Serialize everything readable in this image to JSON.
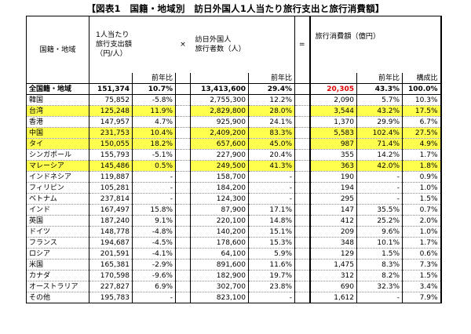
{
  "title": "【図表1　国籍・地域別　訪日外国人1人当たり旅行支出と旅行消費額】",
  "headers": {
    "country": "国籍・地域",
    "per_capita_line1": "1人当たり",
    "per_capita_line2": "旅行支出額",
    "per_capita_line3": "（円/人）",
    "times": "×",
    "visitors_line1": "訪日外国人",
    "visitors_line2": "旅行者数（人）",
    "equals": "=",
    "consumption": "旅行消費額（億円）",
    "yoy": "前年比",
    "share": "構成比"
  },
  "rows": [
    {
      "name": "全国籍・地域",
      "spend": "151,374",
      "spend_yoy": "10.7%",
      "visitors": "13,413,600",
      "visitors_yoy": "29.4%",
      "consumption": "20,305",
      "cons_yoy": "43.3%",
      "share": "100.0%",
      "highlight": false,
      "total": true
    },
    {
      "name": "韓国",
      "spend": "75,852",
      "spend_yoy": "-5.8%",
      "visitors": "2,755,300",
      "visitors_yoy": "12.2%",
      "consumption": "2,090",
      "cons_yoy": "5.7%",
      "share": "10.3%",
      "highlight": false,
      "total": false
    },
    {
      "name": "台湾",
      "spend": "125,248",
      "spend_yoy": "11.9%",
      "visitors": "2,829,800",
      "visitors_yoy": "28.0%",
      "consumption": "3,544",
      "cons_yoy": "43.2%",
      "share": "17.5%",
      "highlight": true,
      "total": false
    },
    {
      "name": "香港",
      "spend": "147,957",
      "spend_yoy": "4.7%",
      "visitors": "925,900",
      "visitors_yoy": "24.1%",
      "consumption": "1,370",
      "cons_yoy": "29.9%",
      "share": "6.7%",
      "highlight": false,
      "total": false
    },
    {
      "name": "中国",
      "spend": "231,753",
      "spend_yoy": "10.4%",
      "visitors": "2,409,200",
      "visitors_yoy": "83.3%",
      "consumption": "5,583",
      "cons_yoy": "102.4%",
      "share": "27.5%",
      "highlight": true,
      "total": false
    },
    {
      "name": "タイ",
      "spend": "150,055",
      "spend_yoy": "18.2%",
      "visitors": "657,600",
      "visitors_yoy": "45.0%",
      "consumption": "987",
      "cons_yoy": "71.4%",
      "share": "4.9%",
      "highlight": true,
      "total": false
    },
    {
      "name": "シンガポール",
      "spend": "155,793",
      "spend_yoy": "-5.1%",
      "visitors": "227,900",
      "visitors_yoy": "20.4%",
      "consumption": "355",
      "cons_yoy": "14.2%",
      "share": "1.7%",
      "highlight": false,
      "total": false
    },
    {
      "name": "マレーシア",
      "spend": "145,486",
      "spend_yoy": "0.5%",
      "visitors": "249,500",
      "visitors_yoy": "41.3%",
      "consumption": "363",
      "cons_yoy": "42.0%",
      "share": "1.8%",
      "highlight": true,
      "total": false
    },
    {
      "name": "インドネシア",
      "spend": "119,887",
      "spend_yoy": "-",
      "visitors": "158,700",
      "visitors_yoy": "-",
      "consumption": "190",
      "cons_yoy": "-",
      "share": "0.9%",
      "highlight": false,
      "total": false
    },
    {
      "name": "フィリピン",
      "spend": "105,281",
      "spend_yoy": "-",
      "visitors": "184,200",
      "visitors_yoy": "-",
      "consumption": "194",
      "cons_yoy": "-",
      "share": "1.0%",
      "highlight": false,
      "total": false
    },
    {
      "name": "ベトナム",
      "spend": "237,814",
      "spend_yoy": "-",
      "visitors": "124,300",
      "visitors_yoy": "-",
      "consumption": "295",
      "cons_yoy": "-",
      "share": "1.5%",
      "highlight": false,
      "total": false
    },
    {
      "name": "インド",
      "spend": "167,497",
      "spend_yoy": "15.8%",
      "visitors": "87,900",
      "visitors_yoy": "17.1%",
      "consumption": "147",
      "cons_yoy": "35.5%",
      "share": "0.7%",
      "highlight": false,
      "total": false
    },
    {
      "name": "英国",
      "spend": "187,240",
      "spend_yoy": "9.1%",
      "visitors": "220,100",
      "visitors_yoy": "14.8%",
      "consumption": "412",
      "cons_yoy": "25.2%",
      "share": "2.0%",
      "highlight": false,
      "total": false
    },
    {
      "name": "ドイツ",
      "spend": "148,778",
      "spend_yoy": "-4.8%",
      "visitors": "140,200",
      "visitors_yoy": "15.1%",
      "consumption": "209",
      "cons_yoy": "9.6%",
      "share": "1.0%",
      "highlight": false,
      "total": false
    },
    {
      "name": "フランス",
      "spend": "194,687",
      "spend_yoy": "-4.5%",
      "visitors": "178,600",
      "visitors_yoy": "15.3%",
      "consumption": "348",
      "cons_yoy": "10.1%",
      "share": "1.7%",
      "highlight": false,
      "total": false
    },
    {
      "name": "ロシア",
      "spend": "201,591",
      "spend_yoy": "-4.1%",
      "visitors": "64,100",
      "visitors_yoy": "5.9%",
      "consumption": "129",
      "cons_yoy": "1.5%",
      "share": "0.6%",
      "highlight": false,
      "total": false
    },
    {
      "name": "米国",
      "spend": "165,381",
      "spend_yoy": "-2.9%",
      "visitors": "891,600",
      "visitors_yoy": "11.6%",
      "consumption": "1,475",
      "cons_yoy": "8.3%",
      "share": "7.3%",
      "highlight": false,
      "total": false
    },
    {
      "name": "カナダ",
      "spend": "170,598",
      "spend_yoy": "-9.6%",
      "visitors": "182,900",
      "visitors_yoy": "19.7%",
      "consumption": "312",
      "cons_yoy": "8.2%",
      "share": "1.5%",
      "highlight": false,
      "total": false
    },
    {
      "name": "オーストラリア",
      "spend": "227,827",
      "spend_yoy": "6.9%",
      "visitors": "302,700",
      "visitors_yoy": "23.8%",
      "consumption": "690",
      "cons_yoy": "32.3%",
      "share": "3.4%",
      "highlight": false,
      "total": false
    },
    {
      "name": "その他",
      "spend": "195,783",
      "spend_yoy": "-",
      "visitors": "823,100",
      "visitors_yoy": "-",
      "consumption": "1,612",
      "cons_yoy": "-",
      "share": "7.9%",
      "highlight": false,
      "total": false
    }
  ]
}
